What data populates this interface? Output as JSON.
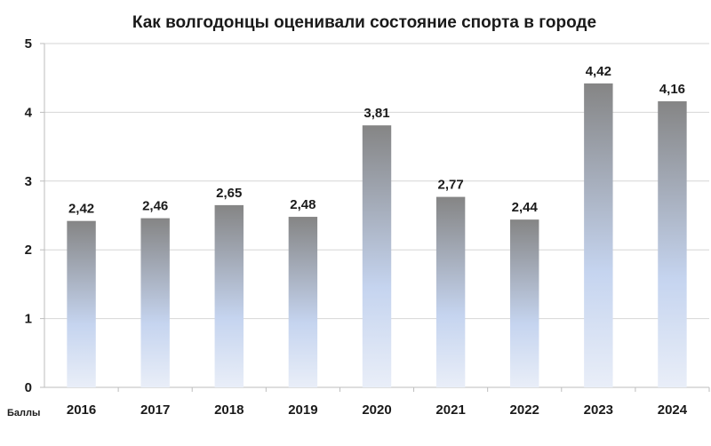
{
  "chart_data": {
    "type": "bar",
    "title": "Как волгодонцы оценивали состояние спорта в городе",
    "unit_label": "Баллы",
    "categories": [
      "2016",
      "2017",
      "2018",
      "2019",
      "2020",
      "2021",
      "2022",
      "2023",
      "2024"
    ],
    "values": [
      2.42,
      2.46,
      2.65,
      2.48,
      3.81,
      2.77,
      2.44,
      4.42,
      4.16
    ],
    "value_labels": [
      "2,42",
      "2,46",
      "2,65",
      "2,48",
      "3,81",
      "2,77",
      "2,44",
      "4,42",
      "4,16"
    ],
    "ylim": [
      0,
      5
    ],
    "yticks": [
      0,
      1,
      2,
      3,
      4,
      5
    ],
    "grid": true,
    "legend": "none",
    "colors": {
      "bar_top": "#858585",
      "bar_middle": "#c5d4ef",
      "bar_bottom": "#e9eef8",
      "grid": "#d6d6d6",
      "axis": "#bdbdbd"
    }
  }
}
